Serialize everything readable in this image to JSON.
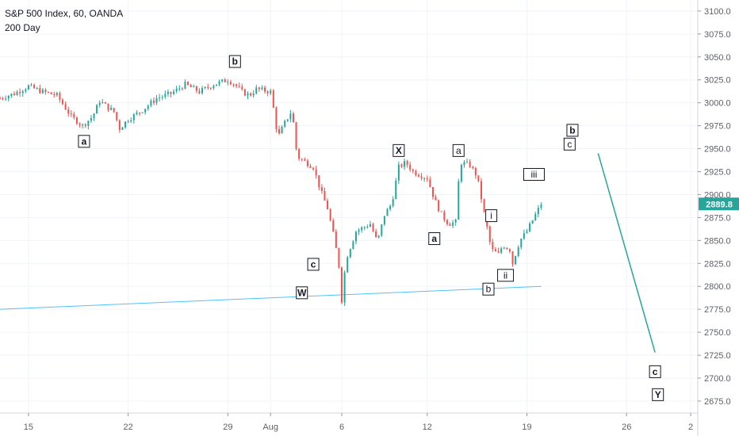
{
  "chart_data": {
    "type": "line",
    "title": "S&P 500 Index, 60, OANDA",
    "indicator_label": "200 Day",
    "last_price": 2889.8,
    "last_price_label": "2889.8",
    "colors": {
      "up_candle": "#26a69a",
      "down_candle": "#ef5350",
      "price_tag": "#26a69a",
      "ma_line": "#4fc3f7",
      "projection": "#26a69a",
      "grid": "#f0f3fa",
      "axis_text": "#5d606b"
    },
    "y_axis": {
      "min": 2662,
      "max": 3112,
      "ticks": [
        3100,
        3075,
        3050,
        3025,
        3000,
        2975,
        2950,
        2925,
        2900,
        2875,
        2850,
        2825,
        2800,
        2775,
        2750,
        2725,
        2700,
        2675
      ],
      "tick_labels": [
        "3100.0",
        "3075.0",
        "3050.0",
        "3025.0",
        "3000.0",
        "2975.0",
        "2950.0",
        "2925.0",
        "2900.0",
        "2875.0",
        "2850.0",
        "2825.0",
        "2800.0",
        "2775.0",
        "2750.0",
        "2725.0",
        "2700.0",
        "2675.0"
      ]
    },
    "x_axis": {
      "min": 0,
      "max": 49,
      "ticks": [
        {
          "x": 2,
          "label": "15"
        },
        {
          "x": 9,
          "label": "22"
        },
        {
          "x": 16,
          "label": "29"
        },
        {
          "x": 19,
          "label": "Aug"
        },
        {
          "x": 24,
          "label": "6"
        },
        {
          "x": 30,
          "label": "12"
        },
        {
          "x": 37,
          "label": "19"
        },
        {
          "x": 44,
          "label": "26"
        },
        {
          "x": 48.5,
          "label": "2"
        }
      ]
    },
    "price_path": [
      [
        0,
        3005
      ],
      [
        1,
        3010
      ],
      [
        2,
        3018
      ],
      [
        3,
        3012
      ],
      [
        4,
        3008
      ],
      [
        5,
        2985
      ],
      [
        5.8,
        2975
      ],
      [
        6.5,
        2985
      ],
      [
        7,
        3002
      ],
      [
        8,
        2990
      ],
      [
        8.4,
        2972
      ],
      [
        9,
        2982
      ],
      [
        10,
        2992
      ],
      [
        11,
        3005
      ],
      [
        12,
        3010
      ],
      [
        13,
        3020
      ],
      [
        14,
        3012
      ],
      [
        15,
        3020
      ],
      [
        16,
        3025
      ],
      [
        16.5,
        3020
      ],
      [
        17,
        3012
      ],
      [
        17.5,
        3008
      ],
      [
        18,
        3015
      ],
      [
        19,
        3012
      ],
      [
        19.3,
        2985
      ],
      [
        19.5,
        2962
      ],
      [
        20,
        2978
      ],
      [
        20.5,
        2992
      ],
      [
        20.8,
        2950
      ],
      [
        21,
        2940
      ],
      [
        22,
        2930
      ],
      [
        22.5,
        2905
      ],
      [
        23,
        2885
      ],
      [
        23.5,
        2850
      ],
      [
        23.8,
        2822
      ],
      [
        24,
        2785
      ],
      [
        24.3,
        2830
      ],
      [
        25,
        2860
      ],
      [
        26,
        2868
      ],
      [
        26.5,
        2848
      ],
      [
        27,
        2878
      ],
      [
        27.5,
        2890
      ],
      [
        28,
        2930
      ],
      [
        28.5,
        2935
      ],
      [
        29,
        2925
      ],
      [
        30,
        2918
      ],
      [
        30.5,
        2895
      ],
      [
        31,
        2878
      ],
      [
        31.5,
        2868
      ],
      [
        32,
        2870
      ],
      [
        32.3,
        2935
      ],
      [
        33,
        2932
      ],
      [
        33.5,
        2920
      ],
      [
        34,
        2880
      ],
      [
        34.5,
        2840
      ],
      [
        35,
        2835
      ],
      [
        35.3,
        2845
      ],
      [
        35.8,
        2840
      ],
      [
        36,
        2825
      ],
      [
        36.5,
        2850
      ],
      [
        37,
        2860
      ],
      [
        37.5,
        2875
      ],
      [
        38,
        2889.8
      ]
    ],
    "ma_line": [
      [
        0,
        2775
      ],
      [
        38,
        2800
      ]
    ],
    "projection_line": [
      [
        42,
        2945
      ],
      [
        46,
        2728
      ]
    ],
    "annotations": [
      {
        "text": "a",
        "x": 5.9,
        "y": 2958,
        "bold": true
      },
      {
        "text": "b",
        "x": 16.5,
        "y": 3045,
        "bold": true
      },
      {
        "text": "c",
        "x": 22.0,
        "y": 2824,
        "bold": true
      },
      {
        "text": "W",
        "x": 21.2,
        "y": 2793,
        "bold": true
      },
      {
        "text": "X",
        "x": 28.0,
        "y": 2948,
        "bold": true
      },
      {
        "text": "a",
        "x": 30.5,
        "y": 2852,
        "bold": true
      },
      {
        "text": "a",
        "x": 32.2,
        "y": 2948,
        "bold": false
      },
      {
        "text": "i",
        "x": 34.5,
        "y": 2877,
        "bold": false
      },
      {
        "text": "b",
        "x": 34.3,
        "y": 2797,
        "bold": false
      },
      {
        "text": "ii",
        "x": 35.5,
        "y": 2812,
        "bold": false
      },
      {
        "text": "iii",
        "x": 37.5,
        "y": 2922,
        "bold": false
      },
      {
        "text": "b",
        "x": 40.2,
        "y": 2970,
        "bold": true
      },
      {
        "text": "c",
        "x": 40.0,
        "y": 2955,
        "bold": false
      },
      {
        "text": "c",
        "x": 46.0,
        "y": 2707,
        "bold": true
      },
      {
        "text": "Y",
        "x": 46.2,
        "y": 2682,
        "bold": true
      }
    ]
  }
}
